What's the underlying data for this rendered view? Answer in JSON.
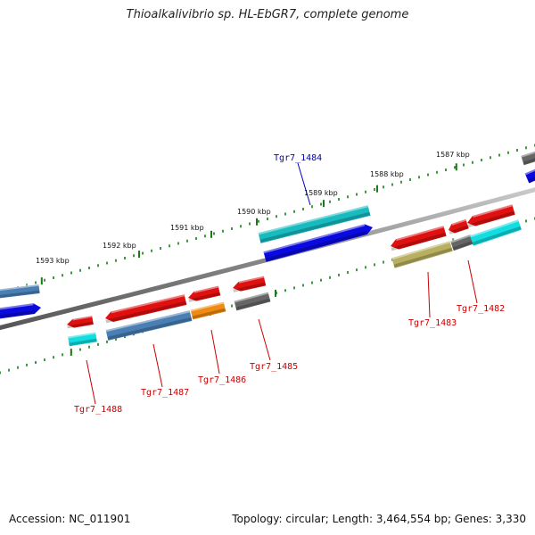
{
  "title": "Thioalkalivibrio sp. HL-EbGR7, complete genome",
  "accession": "Accession: NC_011901",
  "topology": "Topology: circular; Length: 3,464,554 bp; Genes: 3,330",
  "colors": {
    "red": "#e01010",
    "blue": "#0a0ae0",
    "steel": "#4a7fb5",
    "cyan": "#12dde0",
    "teal": "#18bcc0",
    "orange": "#f08a10",
    "gray": "#666666",
    "olive": "#b8b060",
    "tick": "#1a7a1a",
    "label_red": "#cc0000",
    "label_blue": "#0000bb"
  },
  "kbp_labels": [
    "1587 kbp",
    "1588 kbp",
    "1589 kbp",
    "1590 kbp",
    "1591 kbp",
    "1592 kbp",
    "1593 kbp"
  ],
  "gene_labels": [
    {
      "name": "Tgr7_1484",
      "color": "label_blue"
    },
    {
      "name": "Tgr7_1483",
      "color": "label_red"
    },
    {
      "name": "Tgr7_1482",
      "color": "label_red"
    },
    {
      "name": "Tgr7_1485",
      "color": "label_red"
    },
    {
      "name": "Tgr7_1486",
      "color": "label_red"
    },
    {
      "name": "Tgr7_1487",
      "color": "label_red"
    },
    {
      "name": "Tgr7_1488",
      "color": "label_red"
    }
  ]
}
